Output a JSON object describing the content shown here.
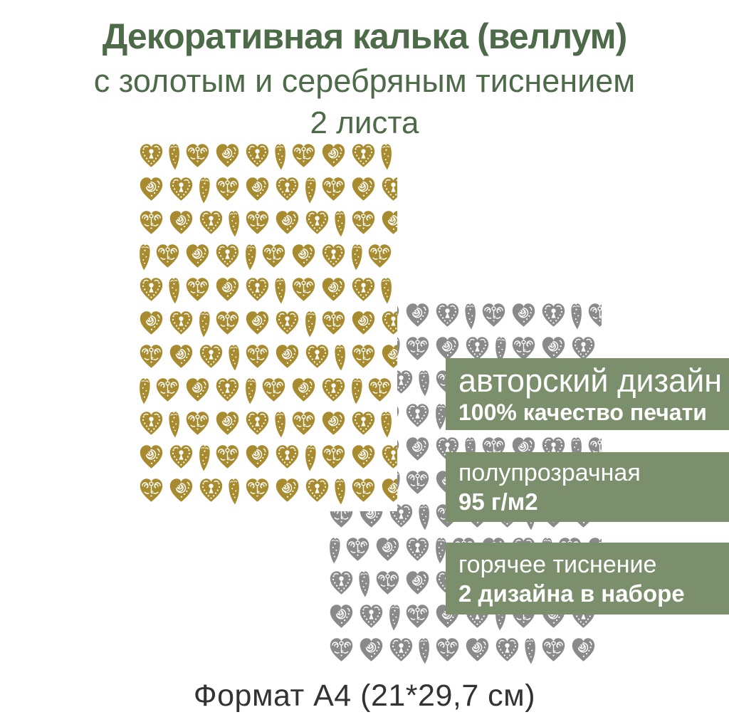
{
  "title": {
    "line1": "Декоративная калька (веллум)",
    "line2": "с золотым и серебряным тиснением",
    "line3": "2 листа"
  },
  "banners": [
    {
      "line1": "авторский дизайн",
      "line2": "100% качество печати"
    },
    {
      "line1": "полупрозрачная",
      "line2": "95 г/м2"
    },
    {
      "line1": "горячее тиснение",
      "line2": "2 дизайна в наборе"
    }
  ],
  "caption": "Формат А4 (21*29,7 см)",
  "colors": {
    "title_green": "#4d6b48",
    "banner_green": "#7b8f6d",
    "gold": "#a78b2e",
    "silver": "#8a8a8a",
    "caption_dark": "#333333",
    "banner_text": "#ffffff"
  },
  "pattern": {
    "rows_per_sheet": 11,
    "hearts_per_row": 11,
    "sequence": [
      "keyhole-heart",
      "narrow-heart",
      "key-heart",
      "spiral-heart"
    ],
    "sheets": [
      {
        "id": "sheet-gold",
        "color_key": "gold",
        "label": "gold embossed hearts"
      },
      {
        "id": "sheet-silver",
        "color_key": "silver",
        "label": "silver embossed hearts"
      }
    ]
  }
}
